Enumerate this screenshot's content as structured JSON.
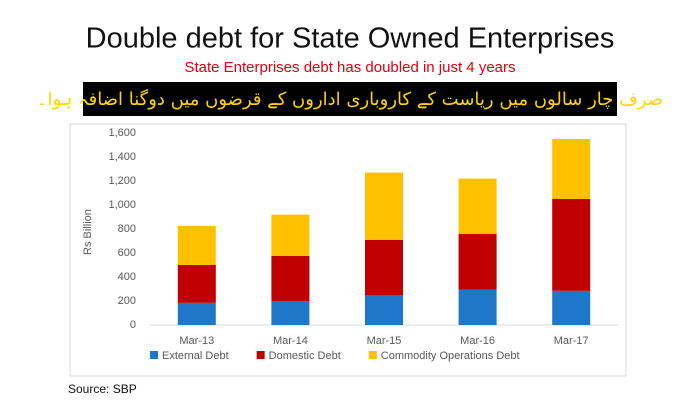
{
  "header": {
    "title": "Double debt for State Owned Enterprises",
    "subtitle": "State Enterprises debt has doubled in just 4 years",
    "banner": "صرف چار سالوں میں ریاست کے کاروباری اداروں کے قرضوں میں دوگنا اضافہ ہوا۔"
  },
  "chart_data": {
    "type": "stacked_bar",
    "y_label": "Rs Billion",
    "categories": [
      "Mar-13",
      "Mar-14",
      "Mar-15",
      "Mar-16",
      "Mar-17"
    ],
    "series": [
      {
        "name": "External Debt",
        "color": "#1f77c9",
        "values": [
          185,
          200,
          250,
          295,
          285
        ]
      },
      {
        "name": "Domestic Debt",
        "color": "#c00000",
        "values": [
          315,
          375,
          460,
          465,
          765
        ]
      },
      {
        "name": "Commodity Operations Debt",
        "color": "#ffc000",
        "values": [
          325,
          345,
          560,
          460,
          500
        ]
      }
    ],
    "ylim": [
      0,
      1600
    ],
    "yticks": [
      0,
      200,
      400,
      600,
      800,
      {
        "value": 1000,
        "label": "1,000"
      },
      {
        "value": 1200,
        "label": "1,200"
      },
      {
        "value": 1400,
        "label": "1,400"
      },
      {
        "value": 1600,
        "label": "1,600"
      }
    ],
    "grid": false,
    "legend": "bottom"
  },
  "footer": {
    "source": "Source: SBP"
  }
}
